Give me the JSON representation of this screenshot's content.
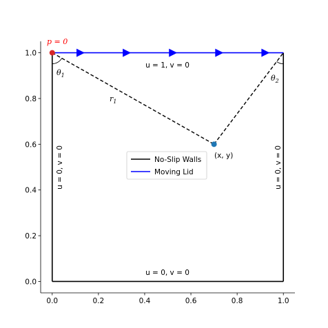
{
  "chart_data": {
    "type": "diagram",
    "xlim": [
      -0.05,
      1.05
    ],
    "ylim": [
      -0.05,
      1.05
    ],
    "x_ticks": [
      "0.0",
      "0.2",
      "0.4",
      "0.6",
      "0.8",
      "1.0"
    ],
    "y_ticks": [
      "0.0",
      "0.2",
      "0.4",
      "0.6",
      "0.8",
      "1.0"
    ],
    "x_tick_values": [
      0,
      0.2,
      0.4,
      0.6,
      0.8,
      1.0
    ],
    "y_tick_values": [
      0,
      0.2,
      0.4,
      0.6,
      0.8,
      1.0
    ],
    "walls": {
      "color": "#000000",
      "segments": [
        [
          [
            0,
            1
          ],
          [
            0,
            0
          ]
        ],
        [
          [
            0,
            0
          ],
          [
            1,
            0
          ]
        ],
        [
          [
            1,
            0
          ],
          [
            1,
            1
          ]
        ]
      ]
    },
    "lid": {
      "color": "#0000ff",
      "from": [
        0,
        1
      ],
      "to": [
        1,
        1
      ],
      "arrow_x": [
        0.12,
        0.32,
        0.52,
        0.72,
        0.92
      ]
    },
    "point": {
      "x": 0.7,
      "y": 0.6,
      "color": "#1f77b4",
      "label": "(x, y)"
    },
    "pressure_point": {
      "x": 0,
      "y": 1,
      "color": "#d62728",
      "label": "p = 0"
    },
    "dashed_lines": [
      [
        [
          0,
          1
        ],
        [
          0.7,
          0.6
        ]
      ],
      [
        [
          0.7,
          0.6
        ],
        [
          1,
          1
        ]
      ]
    ],
    "annotations": {
      "top_bc": "u = 1, v = 0",
      "bottom_bc": "u = 0, v = 0",
      "left_bc": "u = 0, v = 0",
      "right_bc": "u = 0, v = 0",
      "r1": "r",
      "r1_sub": "1",
      "theta1": "θ",
      "theta1_sub": "1",
      "theta2": "θ",
      "theta2_sub": "2"
    },
    "legend": [
      {
        "label": "No-Slip Walls",
        "color": "#000000"
      },
      {
        "label": "Moving Lid",
        "color": "#0000ff"
      }
    ]
  }
}
